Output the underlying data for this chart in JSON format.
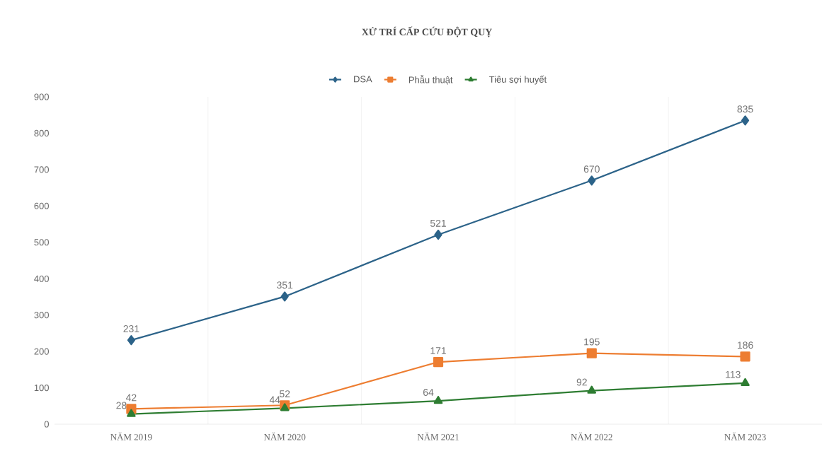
{
  "chart_data": {
    "type": "line",
    "title": "XỬ TRÍ CẤP CỨU ĐỘT QUỴ",
    "categories": [
      "NĂM 2019",
      "NĂM 2020",
      "NĂM 2021",
      "NĂM 2022",
      "NĂM 2023"
    ],
    "series": [
      {
        "name": "DSA",
        "color": "#2c6389",
        "marker": "diamond",
        "values": [
          231,
          351,
          521,
          670,
          835
        ]
      },
      {
        "name": "Phẫu thuật",
        "color": "#ed7d31",
        "marker": "square",
        "values": [
          42,
          52,
          171,
          195,
          186
        ]
      },
      {
        "name": "Tiêu sợi huyết",
        "color": "#2e7d32",
        "marker": "triangle",
        "values": [
          28,
          44,
          64,
          92,
          113
        ]
      }
    ],
    "ylim": [
      0,
      900
    ],
    "yticks": [
      0,
      100,
      200,
      300,
      400,
      500,
      600,
      700,
      800,
      900
    ],
    "grid": "x",
    "legend": "top",
    "data_labels": true,
    "line_style": "solid"
  }
}
